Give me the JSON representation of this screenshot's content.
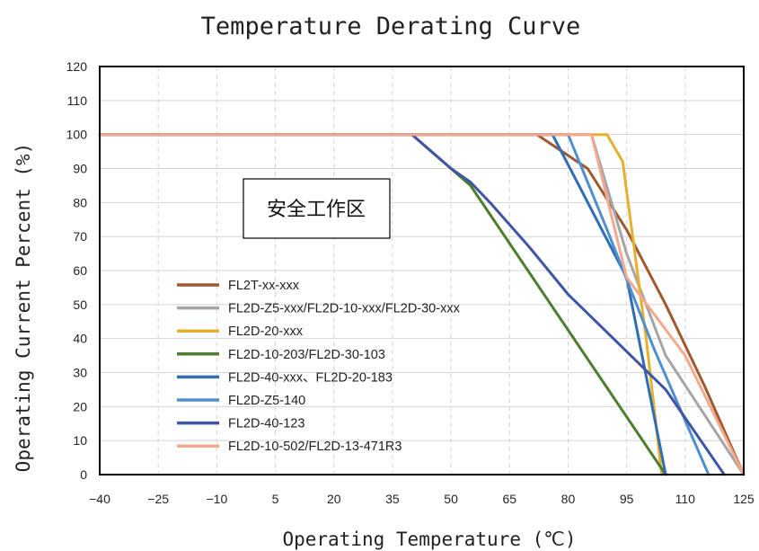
{
  "chart_data": {
    "type": "line",
    "title": "Temperature Derating Curve",
    "xlabel": "Operating Temperature (℃)",
    "ylabel": "Operating Current Percent (%)",
    "xlim": [
      -40,
      125
    ],
    "ylim": [
      0,
      120
    ],
    "x_ticks": [
      "-40",
      "-25",
      "-10",
      "5",
      "20",
      "35",
      "50",
      "65",
      "80",
      "95",
      "110",
      "125"
    ],
    "y_ticks": [
      "0",
      "10",
      "20",
      "30",
      "40",
      "50",
      "60",
      "70",
      "80",
      "90",
      "100",
      "110",
      "120"
    ],
    "grid": true,
    "legend_position": "left",
    "annotation": "安全工作区",
    "series": [
      {
        "name": "FL2T-xx-xxx",
        "color": "#a0592f",
        "points": [
          [
            -40,
            100
          ],
          [
            72,
            100
          ],
          [
            85,
            90
          ],
          [
            95,
            72
          ],
          [
            105,
            50
          ],
          [
            115,
            26
          ],
          [
            125,
            0
          ]
        ]
      },
      {
        "name": "FL2D-Z5-xxx/FL2D-10-xxx/FL2D-30-xxx",
        "color": "#a5a5a5",
        "points": [
          [
            -40,
            100
          ],
          [
            86,
            100
          ],
          [
            95,
            65
          ],
          [
            105,
            35
          ],
          [
            125,
            0
          ]
        ]
      },
      {
        "name": "FL2D-20-xxx",
        "color": "#e6b02e",
        "points": [
          [
            -40,
            100
          ],
          [
            90,
            100
          ],
          [
            94,
            92
          ],
          [
            100,
            40
          ],
          [
            104,
            0
          ]
        ]
      },
      {
        "name": "FL2D-10-203/FL2D-30-103",
        "color": "#4e7d2f",
        "points": [
          [
            -40,
            100
          ],
          [
            40,
            100
          ],
          [
            55,
            85
          ],
          [
            105,
            0
          ]
        ]
      },
      {
        "name": "FL2D-40-xxx、FL2D-20-183",
        "color": "#2f6db5",
        "points": [
          [
            -40,
            100
          ],
          [
            76,
            100
          ],
          [
            95,
            58
          ],
          [
            105,
            0
          ]
        ]
      },
      {
        "name": "FL2D-Z5-140",
        "color": "#4f8fcf",
        "points": [
          [
            -40,
            100
          ],
          [
            80,
            100
          ],
          [
            90,
            72
          ],
          [
            102,
            37
          ],
          [
            116,
            0
          ]
        ]
      },
      {
        "name": "FL2D-40-123",
        "color": "#3f55a5",
        "points": [
          [
            -40,
            100
          ],
          [
            40,
            100
          ],
          [
            50,
            90
          ],
          [
            55,
            86
          ],
          [
            60,
            80
          ],
          [
            70,
            67
          ],
          [
            80,
            53
          ],
          [
            105,
            25
          ],
          [
            120,
            0
          ]
        ]
      },
      {
        "name": "FL2D-10-502/FL2D-13-471R3",
        "color": "#f4a98c",
        "points": [
          [
            -40,
            100
          ],
          [
            86,
            100
          ],
          [
            95,
            58
          ],
          [
            110,
            35
          ],
          [
            125,
            0
          ]
        ]
      }
    ]
  }
}
